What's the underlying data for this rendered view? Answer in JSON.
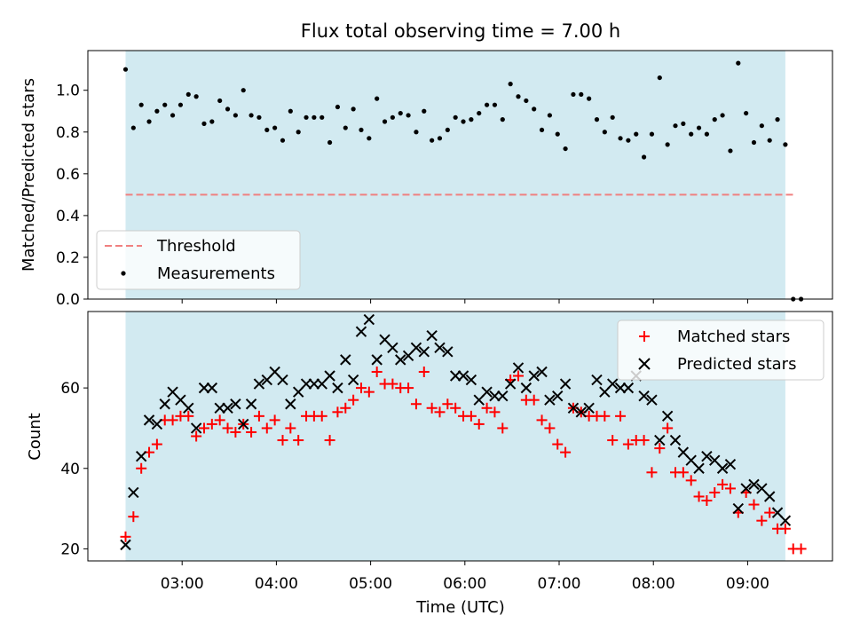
{
  "chart_data": [
    {
      "type": "scatter",
      "title": "Flux total observing time = 7.00 h",
      "xlabel": "",
      "ylabel": "Matched/Predicted stars",
      "ylim": [
        0,
        1.19
      ],
      "yticks": [
        0.0,
        0.2,
        0.4,
        0.6,
        0.8,
        1.0
      ],
      "ytick_labels": [
        "0.0",
        "0.2",
        "0.4",
        "0.6",
        "0.8",
        "1.0"
      ],
      "shaded_span": [
        "02:24",
        "09:24"
      ],
      "threshold": 0.5,
      "threshold_range": [
        "02:24",
        "09:31"
      ],
      "legend": {
        "position": "lower-left",
        "entries": [
          "Threshold",
          "Measurements"
        ]
      },
      "series": [
        {
          "name": "Measurements",
          "x": [
            "02:24",
            "02:29",
            "02:34",
            "02:39",
            "02:44",
            "02:49",
            "02:54",
            "02:59",
            "03:04",
            "03:09",
            "03:14",
            "03:19",
            "03:24",
            "03:29",
            "03:34",
            "03:39",
            "03:44",
            "03:49",
            "03:54",
            "03:59",
            "04:04",
            "04:09",
            "04:14",
            "04:19",
            "04:24",
            "04:29",
            "04:34",
            "04:39",
            "04:44",
            "04:49",
            "04:54",
            "04:59",
            "05:04",
            "05:09",
            "05:14",
            "05:19",
            "05:24",
            "05:29",
            "05:34",
            "05:39",
            "05:44",
            "05:49",
            "05:54",
            "05:59",
            "06:04",
            "06:09",
            "06:14",
            "06:19",
            "06:24",
            "06:29",
            "06:34",
            "06:39",
            "06:44",
            "06:49",
            "06:54",
            "06:59",
            "07:04",
            "07:09",
            "07:14",
            "07:19",
            "07:24",
            "07:29",
            "07:34",
            "07:39",
            "07:44",
            "07:49",
            "07:54",
            "07:59",
            "08:04",
            "08:09",
            "08:14",
            "08:19",
            "08:24",
            "08:29",
            "08:34",
            "08:39",
            "08:44",
            "08:49",
            "08:54",
            "08:59",
            "09:04",
            "09:09",
            "09:14",
            "09:19",
            "09:24",
            "09:29",
            "09:34"
          ],
          "y": [
            1.1,
            0.82,
            0.93,
            0.85,
            0.9,
            0.93,
            0.88,
            0.93,
            0.98,
            0.97,
            0.84,
            0.85,
            0.95,
            0.91,
            0.88,
            1.0,
            0.88,
            0.87,
            0.81,
            0.82,
            0.76,
            0.9,
            0.8,
            0.87,
            0.87,
            0.87,
            0.75,
            0.92,
            0.82,
            0.91,
            0.81,
            0.77,
            0.96,
            0.85,
            0.87,
            0.89,
            0.88,
            0.8,
            0.9,
            0.76,
            0.77,
            0.81,
            0.87,
            0.85,
            0.86,
            0.89,
            0.93,
            0.93,
            0.86,
            1.03,
            0.97,
            0.95,
            0.91,
            0.81,
            0.88,
            0.79,
            0.72,
            0.98,
            0.98,
            0.96,
            0.86,
            0.8,
            0.87,
            0.77,
            0.76,
            0.79,
            0.68,
            0.79,
            1.06,
            0.74,
            0.83,
            0.84,
            0.79,
            0.82,
            0.79,
            0.86,
            0.88,
            0.71,
            1.13,
            0.89,
            0.75,
            0.83,
            0.76,
            0.86,
            0.74,
            0.0,
            0.0
          ]
        }
      ]
    },
    {
      "type": "scatter",
      "title": "",
      "xlabel": "Time (UTC)",
      "ylabel": "Count",
      "ylim": [
        17,
        79
      ],
      "yticks": [
        20,
        40,
        60
      ],
      "ytick_labels": [
        "20",
        "40",
        "60"
      ],
      "xticks": [
        "03:00",
        "04:00",
        "05:00",
        "06:00",
        "07:00",
        "08:00",
        "09:00"
      ],
      "xlim": [
        "02:00",
        "09:54"
      ],
      "shaded_span": [
        "02:24",
        "09:24"
      ],
      "legend": {
        "position": "top-right",
        "entries": [
          "Matched stars",
          "Predicted stars"
        ]
      },
      "series": [
        {
          "name": "Matched stars",
          "color": "#ff0000",
          "marker": "+",
          "x": [
            "02:24",
            "02:29",
            "02:34",
            "02:39",
            "02:44",
            "02:49",
            "02:54",
            "02:59",
            "03:04",
            "03:09",
            "03:14",
            "03:19",
            "03:24",
            "03:29",
            "03:34",
            "03:39",
            "03:44",
            "03:49",
            "03:54",
            "03:59",
            "04:04",
            "04:09",
            "04:14",
            "04:19",
            "04:24",
            "04:29",
            "04:34",
            "04:39",
            "04:44",
            "04:49",
            "04:54",
            "04:59",
            "05:04",
            "05:09",
            "05:14",
            "05:19",
            "05:24",
            "05:29",
            "05:34",
            "05:39",
            "05:44",
            "05:49",
            "05:54",
            "05:59",
            "06:04",
            "06:09",
            "06:14",
            "06:19",
            "06:24",
            "06:29",
            "06:34",
            "06:39",
            "06:44",
            "06:49",
            "06:54",
            "06:59",
            "07:04",
            "07:09",
            "07:14",
            "07:19",
            "07:24",
            "07:29",
            "07:34",
            "07:39",
            "07:44",
            "07:49",
            "07:54",
            "07:59",
            "08:04",
            "08:09",
            "08:14",
            "08:19",
            "08:24",
            "08:29",
            "08:34",
            "08:39",
            "08:44",
            "08:49",
            "08:54",
            "08:59",
            "09:04",
            "09:09",
            "09:14",
            "09:19",
            "09:24",
            "09:29",
            "09:34"
          ],
          "y": [
            23,
            28,
            40,
            44,
            46,
            52,
            52,
            53,
            53,
            48,
            50,
            51,
            52,
            50,
            49,
            51,
            49,
            53,
            50,
            52,
            47,
            50,
            47,
            53,
            53,
            53,
            47,
            54,
            55,
            57,
            60,
            59,
            64,
            61,
            61,
            60,
            60,
            56,
            64,
            55,
            54,
            56,
            55,
            53,
            53,
            51,
            55,
            54,
            50,
            62,
            63,
            57,
            57,
            52,
            50,
            46,
            44,
            55,
            54,
            53,
            53,
            53,
            47,
            53,
            46,
            47,
            47,
            39,
            45,
            50,
            39,
            39,
            37,
            33,
            32,
            34,
            36,
            35,
            29,
            34,
            31,
            27,
            29,
            25,
            25,
            20,
            20
          ]
        },
        {
          "name": "Predicted stars",
          "color": "#000000",
          "marker": "x",
          "x": [
            "02:24",
            "02:29",
            "02:34",
            "02:39",
            "02:44",
            "02:49",
            "02:54",
            "02:59",
            "03:04",
            "03:09",
            "03:14",
            "03:19",
            "03:24",
            "03:29",
            "03:34",
            "03:39",
            "03:44",
            "03:49",
            "03:54",
            "03:59",
            "04:04",
            "04:09",
            "04:14",
            "04:19",
            "04:24",
            "04:29",
            "04:34",
            "04:39",
            "04:44",
            "04:49",
            "04:54",
            "04:59",
            "05:04",
            "05:09",
            "05:14",
            "05:19",
            "05:24",
            "05:29",
            "05:34",
            "05:39",
            "05:44",
            "05:49",
            "05:54",
            "05:59",
            "06:04",
            "06:09",
            "06:14",
            "06:19",
            "06:24",
            "06:29",
            "06:34",
            "06:39",
            "06:44",
            "06:49",
            "06:54",
            "06:59",
            "07:04",
            "07:09",
            "07:14",
            "07:19",
            "07:24",
            "07:29",
            "07:34",
            "07:39",
            "07:44",
            "07:49",
            "07:54",
            "07:59",
            "08:04",
            "08:09",
            "08:14",
            "08:19",
            "08:24",
            "08:29",
            "08:34",
            "08:39",
            "08:44",
            "08:49",
            "08:54",
            "08:59",
            "09:04",
            "09:09",
            "09:14",
            "09:19",
            "09:24"
          ],
          "y": [
            21,
            34,
            43,
            52,
            51,
            56,
            59,
            57,
            55,
            50,
            60,
            60,
            55,
            55,
            56,
            51,
            56,
            61,
            62,
            64,
            62,
            56,
            59,
            61,
            61,
            61,
            63,
            60,
            67,
            62,
            74,
            77,
            67,
            72,
            70,
            67,
            68,
            70,
            69,
            73,
            70,
            69,
            63,
            63,
            62,
            57,
            59,
            58,
            58,
            61,
            65,
            60,
            63,
            64,
            57,
            58,
            61,
            55,
            54,
            55,
            62,
            59,
            61,
            60,
            60,
            63,
            58,
            57,
            47,
            53,
            47,
            44,
            42,
            40,
            43,
            42,
            40,
            41,
            30,
            35,
            36,
            35,
            33,
            29,
            27
          ]
        }
      ]
    }
  ]
}
